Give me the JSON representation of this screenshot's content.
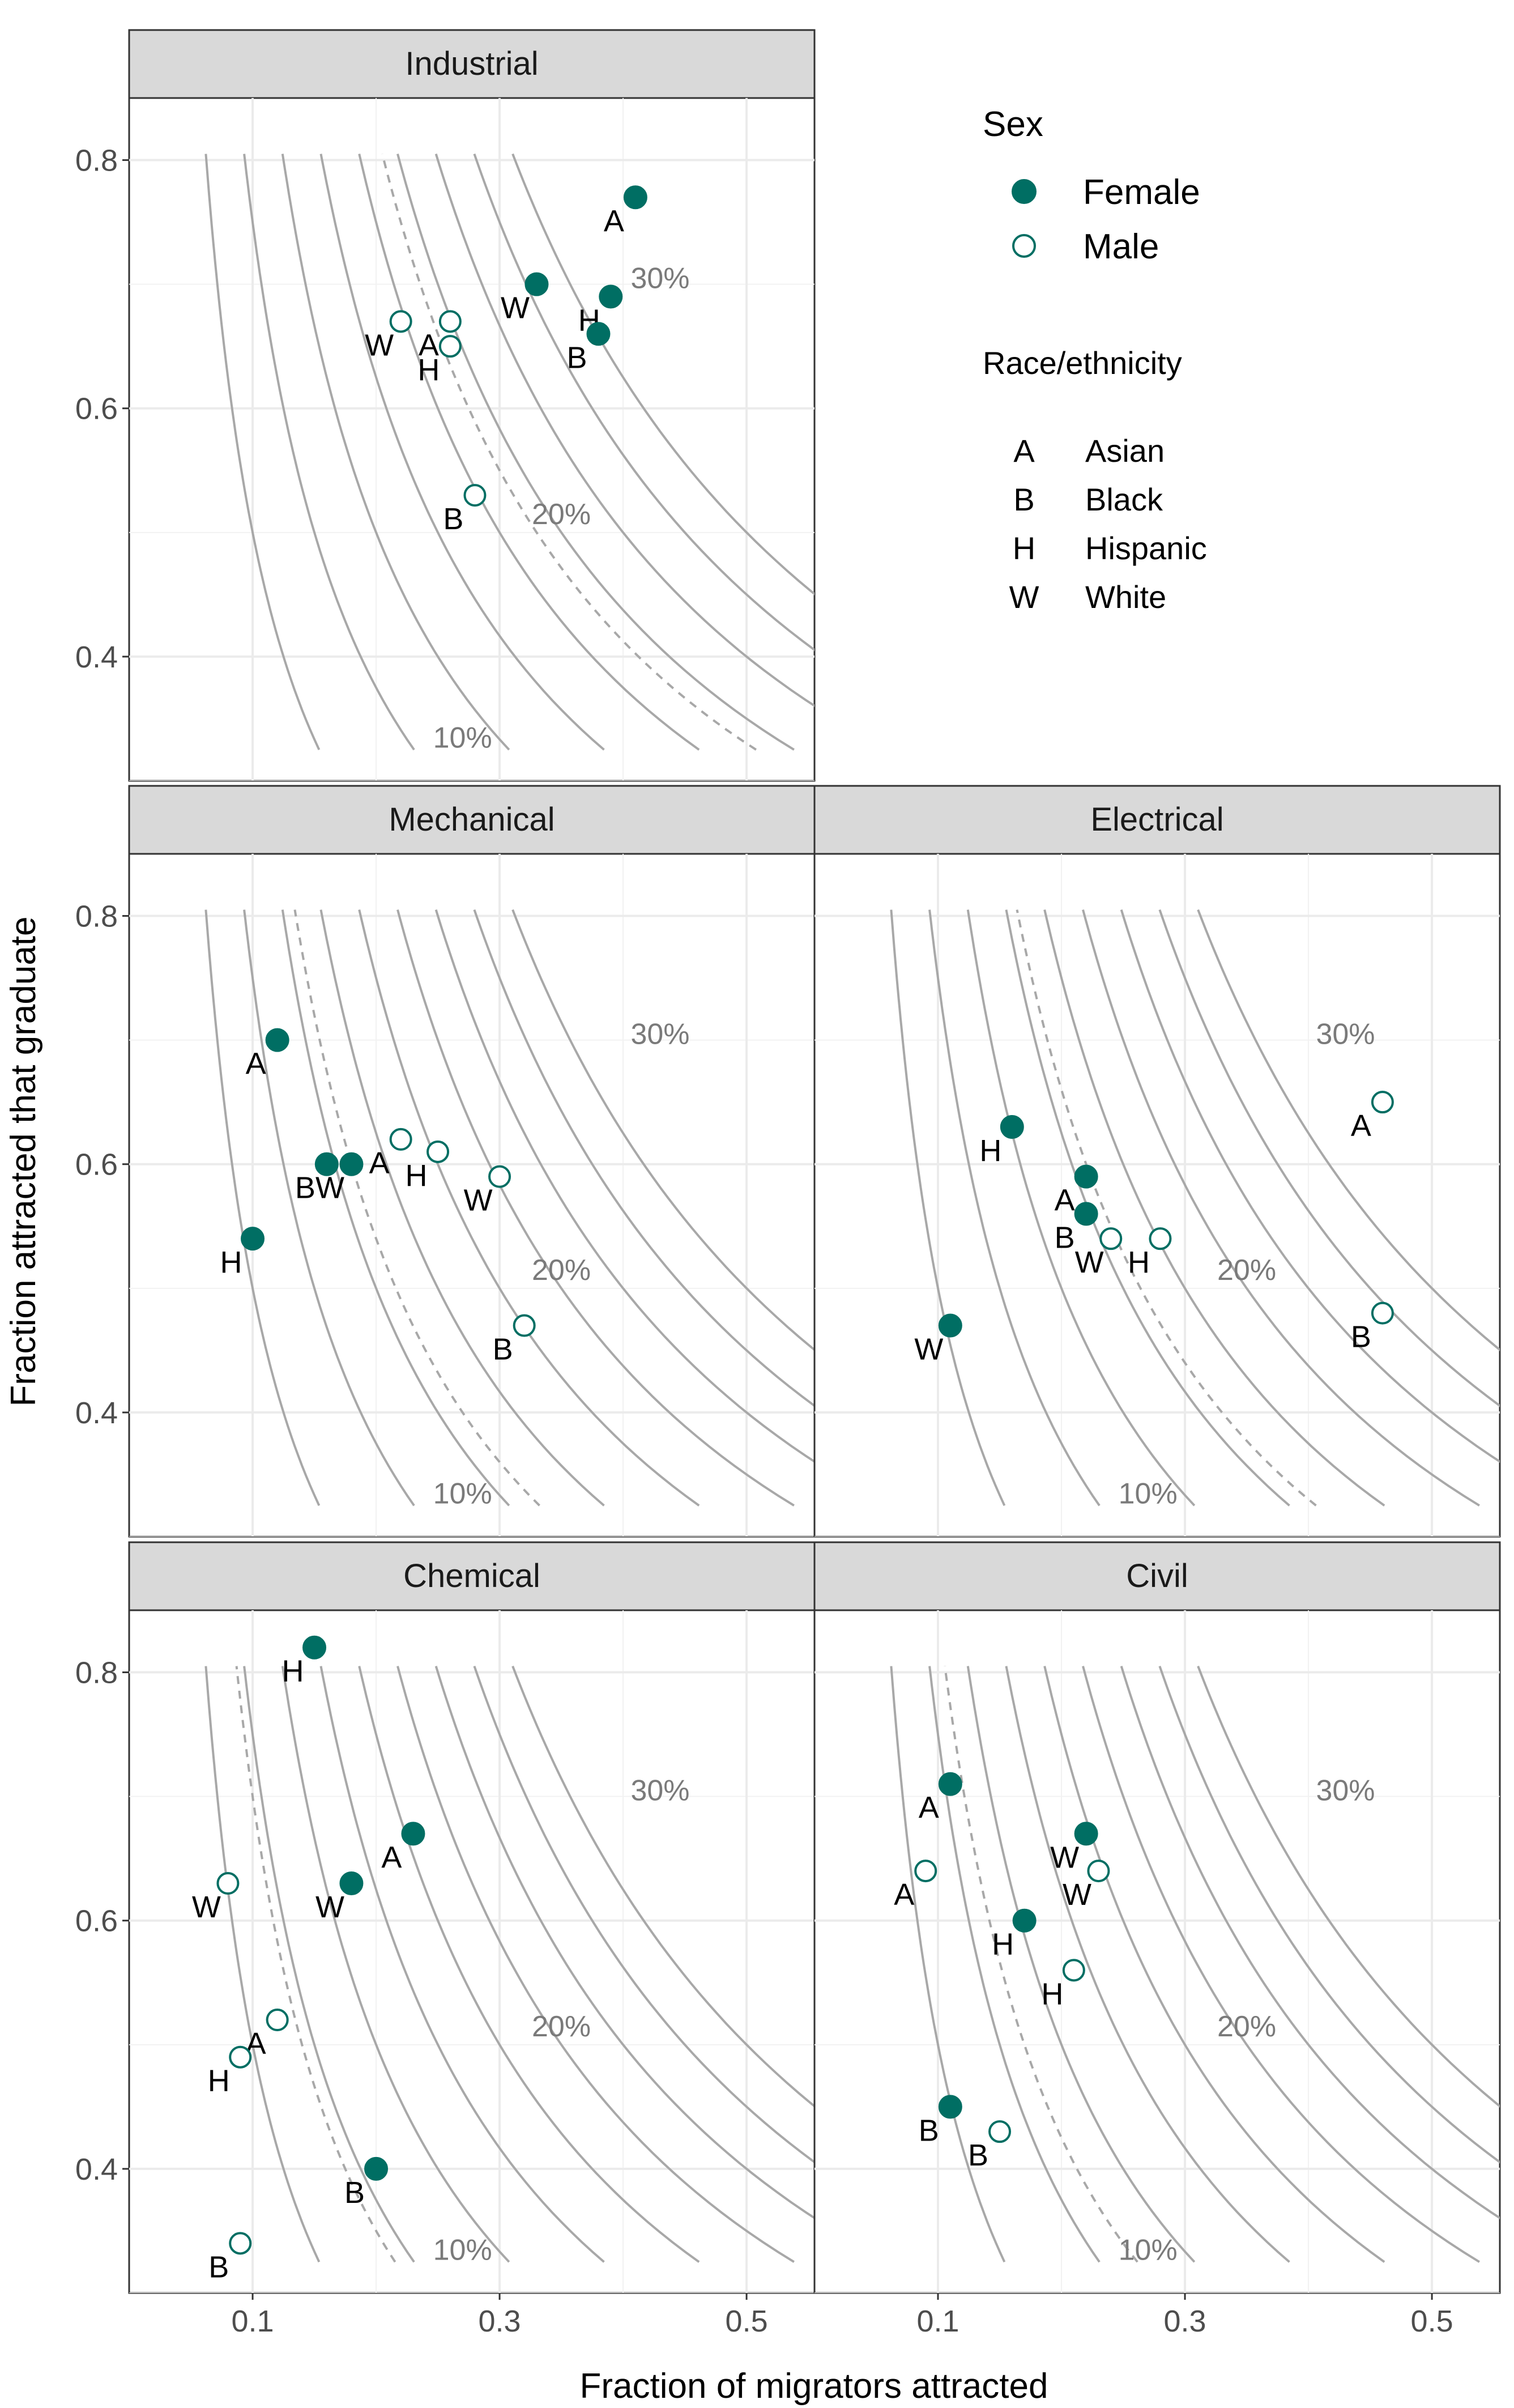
{
  "chart_data": {
    "type": "scatter",
    "xlabel": "Fraction of migrators attracted",
    "ylabel": "Fraction attracted that graduate",
    "x_ticks": [
      "0.1",
      "0.3",
      "0.5"
    ],
    "x_tick_values": [
      0.1,
      0.3,
      0.5
    ],
    "y_ticks": [
      "0.4",
      "0.6",
      "0.8"
    ],
    "y_tick_values": [
      0.4,
      0.6,
      0.8
    ],
    "xlim": [
      0.0,
      0.555
    ],
    "ylim": [
      0.3,
      0.85
    ],
    "grid": true,
    "legend_position": "top-right",
    "colors": {
      "point": "#006e63",
      "strip": "#d9d9d9",
      "isoline": "#a8a8a8"
    },
    "isoline_values": [
      0.05,
      0.075,
      0.1,
      0.125,
      0.15,
      0.175,
      0.2,
      0.225,
      0.25
    ],
    "isoline_labels": [
      {
        "text": "10%",
        "value": 0.1
      },
      {
        "text": "20%",
        "value": 0.2
      },
      {
        "text": "30%",
        "value": 0.3
      }
    ],
    "legend": {
      "sex_title": "Sex",
      "sex_items": [
        {
          "label": "Female",
          "filled": true
        },
        {
          "label": "Male",
          "filled": false
        }
      ],
      "race_title": "Race/ethnicity",
      "race_items": [
        {
          "code": "A",
          "label": "Asian"
        },
        {
          "code": "B",
          "label": "Black"
        },
        {
          "code": "H",
          "label": "Hispanic"
        },
        {
          "code": "W",
          "label": "White"
        }
      ]
    },
    "panels": [
      {
        "name": "Industrial",
        "reference_rate": 0.165,
        "points": [
          {
            "race": "A",
            "sex": "Female",
            "x": 0.41,
            "y": 0.77
          },
          {
            "race": "W",
            "sex": "Female",
            "x": 0.33,
            "y": 0.7
          },
          {
            "race": "H",
            "sex": "Female",
            "x": 0.39,
            "y": 0.69
          },
          {
            "race": "B",
            "sex": "Female",
            "x": 0.38,
            "y": 0.66
          },
          {
            "race": "W",
            "sex": "Male",
            "x": 0.22,
            "y": 0.67
          },
          {
            "race": "A",
            "sex": "Male",
            "x": 0.26,
            "y": 0.67
          },
          {
            "race": "H",
            "sex": "Male",
            "x": 0.26,
            "y": 0.65
          },
          {
            "race": "B",
            "sex": "Male",
            "x": 0.28,
            "y": 0.53
          }
        ]
      },
      {
        "name": "Mechanical",
        "reference_rate": 0.108,
        "points": [
          {
            "race": "A",
            "sex": "Female",
            "x": 0.12,
            "y": 0.7
          },
          {
            "race": "B",
            "sex": "Female",
            "x": 0.16,
            "y": 0.6
          },
          {
            "race": "W",
            "sex": "Female",
            "x": 0.18,
            "y": 0.6
          },
          {
            "race": "H",
            "sex": "Female",
            "x": 0.1,
            "y": 0.54
          },
          {
            "race": "A",
            "sex": "Male",
            "x": 0.22,
            "y": 0.62
          },
          {
            "race": "H",
            "sex": "Male",
            "x": 0.25,
            "y": 0.61
          },
          {
            "race": "W",
            "sex": "Male",
            "x": 0.3,
            "y": 0.59
          },
          {
            "race": "B",
            "sex": "Male",
            "x": 0.32,
            "y": 0.47
          }
        ]
      },
      {
        "name": "Electrical",
        "reference_rate": 0.132,
        "points": [
          {
            "race": "H",
            "sex": "Female",
            "x": 0.16,
            "y": 0.63
          },
          {
            "race": "A",
            "sex": "Female",
            "x": 0.22,
            "y": 0.59
          },
          {
            "race": "B",
            "sex": "Female",
            "x": 0.22,
            "y": 0.56
          },
          {
            "race": "W",
            "sex": "Female",
            "x": 0.11,
            "y": 0.47
          },
          {
            "race": "A",
            "sex": "Male",
            "x": 0.46,
            "y": 0.65
          },
          {
            "race": "W",
            "sex": "Male",
            "x": 0.24,
            "y": 0.54
          },
          {
            "race": "H",
            "sex": "Male",
            "x": 0.28,
            "y": 0.54
          },
          {
            "race": "B",
            "sex": "Male",
            "x": 0.46,
            "y": 0.48
          }
        ]
      },
      {
        "name": "Chemical",
        "reference_rate": 0.07,
        "points": [
          {
            "race": "H",
            "sex": "Female",
            "x": 0.15,
            "y": 0.82
          },
          {
            "race": "A",
            "sex": "Female",
            "x": 0.23,
            "y": 0.67
          },
          {
            "race": "W",
            "sex": "Female",
            "x": 0.18,
            "y": 0.63
          },
          {
            "race": "B",
            "sex": "Female",
            "x": 0.2,
            "y": 0.4
          },
          {
            "race": "W",
            "sex": "Male",
            "x": 0.08,
            "y": 0.63
          },
          {
            "race": "A",
            "sex": "Male",
            "x": 0.12,
            "y": 0.52
          },
          {
            "race": "H",
            "sex": "Male",
            "x": 0.09,
            "y": 0.49
          },
          {
            "race": "B",
            "sex": "Male",
            "x": 0.09,
            "y": 0.34
          }
        ]
      },
      {
        "name": "Civil",
        "reference_rate": 0.085,
        "points": [
          {
            "race": "A",
            "sex": "Female",
            "x": 0.11,
            "y": 0.71
          },
          {
            "race": "W",
            "sex": "Female",
            "x": 0.22,
            "y": 0.67
          },
          {
            "race": "H",
            "sex": "Female",
            "x": 0.17,
            "y": 0.6
          },
          {
            "race": "B",
            "sex": "Female",
            "x": 0.11,
            "y": 0.45
          },
          {
            "race": "A",
            "sex": "Male",
            "x": 0.09,
            "y": 0.64
          },
          {
            "race": "W",
            "sex": "Male",
            "x": 0.23,
            "y": 0.64
          },
          {
            "race": "H",
            "sex": "Male",
            "x": 0.21,
            "y": 0.56
          },
          {
            "race": "B",
            "sex": "Male",
            "x": 0.15,
            "y": 0.43
          }
        ]
      }
    ]
  }
}
